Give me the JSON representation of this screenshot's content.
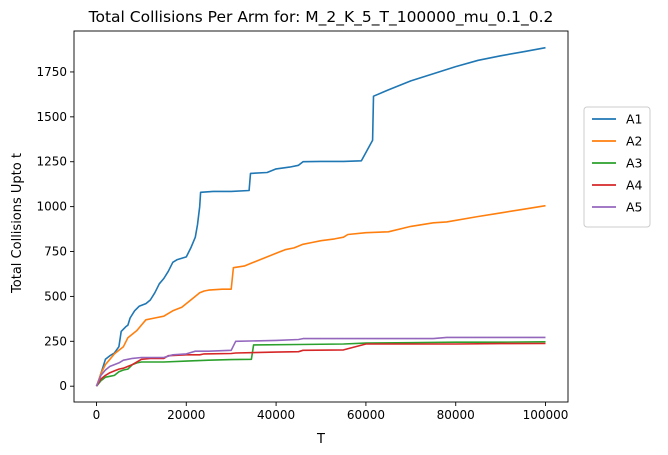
{
  "chart_data": {
    "type": "line",
    "title": "Total Collisions Per Arm for: M_2_K_5_T_100000_mu_0.1_0.2",
    "xlabel": "T",
    "ylabel": "Total Collisions Upto t",
    "xlim": [
      -5000,
      105000
    ],
    "ylim": [
      -88,
      1978
    ],
    "x_ticks": [
      0,
      20000,
      40000,
      60000,
      80000,
      100000
    ],
    "y_ticks": [
      0,
      250,
      500,
      750,
      1000,
      1250,
      1500,
      1750
    ],
    "grid": false,
    "legend_position": "right",
    "series": [
      {
        "name": "A1",
        "color": "#1f77b4",
        "points": [
          [
            0,
            0
          ],
          [
            500,
            30
          ],
          [
            1000,
            70
          ],
          [
            1500,
            110
          ],
          [
            2000,
            150
          ],
          [
            3000,
            170
          ],
          [
            4000,
            185
          ],
          [
            5000,
            220
          ],
          [
            5500,
            305
          ],
          [
            6500,
            330
          ],
          [
            7000,
            340
          ],
          [
            7500,
            380
          ],
          [
            8500,
            420
          ],
          [
            9500,
            445
          ],
          [
            11000,
            460
          ],
          [
            12000,
            480
          ],
          [
            13000,
            520
          ],
          [
            14000,
            570
          ],
          [
            15000,
            600
          ],
          [
            16000,
            640
          ],
          [
            17000,
            690
          ],
          [
            18000,
            705
          ],
          [
            20000,
            720
          ],
          [
            21000,
            770
          ],
          [
            22000,
            830
          ],
          [
            22500,
            900
          ],
          [
            23000,
            1000
          ],
          [
            23200,
            1080
          ],
          [
            26000,
            1085
          ],
          [
            30000,
            1085
          ],
          [
            34000,
            1090
          ],
          [
            34300,
            1185
          ],
          [
            38000,
            1190
          ],
          [
            40000,
            1210
          ],
          [
            43000,
            1220
          ],
          [
            45000,
            1230
          ],
          [
            46000,
            1250
          ],
          [
            50000,
            1252
          ],
          [
            55000,
            1252
          ],
          [
            59000,
            1255
          ],
          [
            61500,
            1370
          ],
          [
            61700,
            1615
          ],
          [
            65000,
            1650
          ],
          [
            70000,
            1700
          ],
          [
            75000,
            1740
          ],
          [
            80000,
            1780
          ],
          [
            85000,
            1815
          ],
          [
            90000,
            1840
          ],
          [
            95000,
            1862
          ],
          [
            100000,
            1885
          ]
        ]
      },
      {
        "name": "A2",
        "color": "#ff7f0e",
        "points": [
          [
            0,
            0
          ],
          [
            1000,
            70
          ],
          [
            2000,
            120
          ],
          [
            3000,
            150
          ],
          [
            4000,
            180
          ],
          [
            5000,
            200
          ],
          [
            6000,
            220
          ],
          [
            7000,
            270
          ],
          [
            8000,
            290
          ],
          [
            9000,
            310
          ],
          [
            10000,
            340
          ],
          [
            11000,
            370
          ],
          [
            13000,
            380
          ],
          [
            15000,
            390
          ],
          [
            17000,
            420
          ],
          [
            19000,
            440
          ],
          [
            20000,
            460
          ],
          [
            21000,
            480
          ],
          [
            22000,
            500
          ],
          [
            23000,
            520
          ],
          [
            24000,
            530
          ],
          [
            25000,
            535
          ],
          [
            28000,
            540
          ],
          [
            30000,
            540
          ],
          [
            30500,
            660
          ],
          [
            33000,
            670
          ],
          [
            35000,
            690
          ],
          [
            38000,
            720
          ],
          [
            40000,
            740
          ],
          [
            42000,
            760
          ],
          [
            44000,
            770
          ],
          [
            46000,
            790
          ],
          [
            48000,
            800
          ],
          [
            50000,
            810
          ],
          [
            53000,
            820
          ],
          [
            55000,
            830
          ],
          [
            56000,
            845
          ],
          [
            60000,
            855
          ],
          [
            65000,
            860
          ],
          [
            70000,
            890
          ],
          [
            75000,
            910
          ],
          [
            78000,
            915
          ],
          [
            85000,
            945
          ],
          [
            90000,
            965
          ],
          [
            95000,
            985
          ],
          [
            100000,
            1005
          ]
        ]
      },
      {
        "name": "A3",
        "color": "#2ca02c",
        "points": [
          [
            0,
            0
          ],
          [
            1000,
            30
          ],
          [
            2000,
            50
          ],
          [
            3000,
            55
          ],
          [
            4000,
            60
          ],
          [
            5000,
            80
          ],
          [
            6000,
            90
          ],
          [
            7000,
            95
          ],
          [
            8000,
            120
          ],
          [
            9000,
            130
          ],
          [
            10000,
            135
          ],
          [
            15000,
            135
          ],
          [
            20000,
            140
          ],
          [
            25000,
            145
          ],
          [
            30000,
            148
          ],
          [
            34500,
            150
          ],
          [
            35000,
            230
          ],
          [
            45000,
            232
          ],
          [
            55000,
            235
          ],
          [
            60000,
            240
          ],
          [
            70000,
            242
          ],
          [
            80000,
            245
          ],
          [
            90000,
            245
          ],
          [
            100000,
            247
          ]
        ]
      },
      {
        "name": "A4",
        "color": "#d62728",
        "points": [
          [
            0,
            0
          ],
          [
            1000,
            40
          ],
          [
            2000,
            60
          ],
          [
            3000,
            75
          ],
          [
            4000,
            85
          ],
          [
            5000,
            95
          ],
          [
            6000,
            100
          ],
          [
            7000,
            110
          ],
          [
            8000,
            120
          ],
          [
            9000,
            135
          ],
          [
            10000,
            150
          ],
          [
            12000,
            155
          ],
          [
            15000,
            155
          ],
          [
            16000,
            170
          ],
          [
            20000,
            175
          ],
          [
            23000,
            175
          ],
          [
            24000,
            180
          ],
          [
            30000,
            182
          ],
          [
            31000,
            185
          ],
          [
            40000,
            190
          ],
          [
            45000,
            192
          ],
          [
            46000,
            200
          ],
          [
            55000,
            202
          ],
          [
            60000,
            235
          ],
          [
            70000,
            235
          ],
          [
            80000,
            235
          ],
          [
            90000,
            237
          ],
          [
            100000,
            238
          ]
        ]
      },
      {
        "name": "A5",
        "color": "#9467bd",
        "points": [
          [
            0,
            0
          ],
          [
            1000,
            60
          ],
          [
            2000,
            90
          ],
          [
            3000,
            110
          ],
          [
            4000,
            120
          ],
          [
            5000,
            130
          ],
          [
            6000,
            145
          ],
          [
            7000,
            150
          ],
          [
            8000,
            155
          ],
          [
            10000,
            160
          ],
          [
            15000,
            160
          ],
          [
            17000,
            175
          ],
          [
            20000,
            180
          ],
          [
            22000,
            195
          ],
          [
            25000,
            195
          ],
          [
            30000,
            200
          ],
          [
            31000,
            250
          ],
          [
            40000,
            255
          ],
          [
            45000,
            260
          ],
          [
            46000,
            265
          ],
          [
            55000,
            265
          ],
          [
            65000,
            265
          ],
          [
            75000,
            265
          ],
          [
            78000,
            272
          ],
          [
            90000,
            272
          ],
          [
            100000,
            272
          ]
        ]
      }
    ]
  }
}
